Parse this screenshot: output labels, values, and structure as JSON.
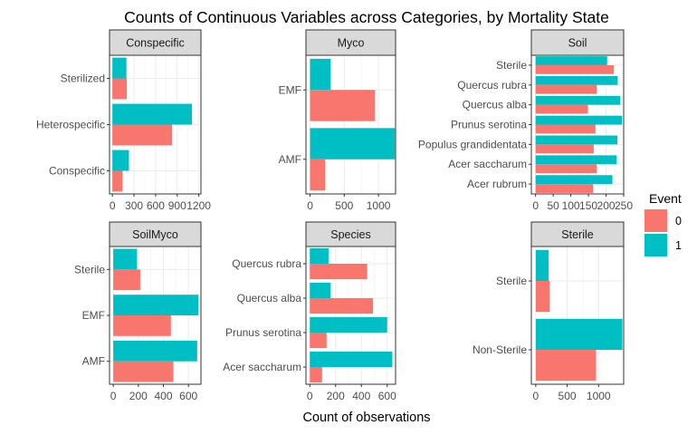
{
  "title": "Counts of Continuous Variables across Categories, by Mortality State",
  "xlabel": "Count of observations",
  "legend": {
    "title": "Event",
    "items": [
      {
        "label": "0",
        "color": "#F8766D"
      },
      {
        "label": "1",
        "color": "#00BFC4"
      }
    ]
  },
  "colors": {
    "event0": "#F8766D",
    "event1": "#00BFC4",
    "strip": "#d9d9d9",
    "grid": "#ebebeb"
  },
  "chart_data": [
    {
      "type": "bar",
      "title": "Conspecific",
      "categories": [
        "Sterilized",
        "Heterospecific",
        "Conspecific"
      ],
      "series": [
        {
          "name": "0",
          "values": [
            200,
            830,
            140
          ]
        },
        {
          "name": "1",
          "values": [
            195,
            1105,
            230
          ]
        }
      ],
      "xlim": [
        -40,
        1230
      ],
      "xticks": [
        0,
        300,
        600,
        900,
        1200
      ]
    },
    {
      "type": "bar",
      "title": "Myco",
      "categories": [
        "EMF",
        "AMF"
      ],
      "series": [
        {
          "name": "0",
          "values": [
            950,
            220
          ]
        },
        {
          "name": "1",
          "values": [
            300,
            1240
          ]
        }
      ],
      "xlim": [
        -60,
        1250
      ],
      "xticks": [
        0,
        500,
        1000
      ]
    },
    {
      "type": "bar",
      "title": "Soil",
      "categories": [
        "Sterile",
        "Quercus rubra",
        "Quercus alba",
        "Prunus serotina",
        "Populus grandidentata",
        "Acer saccharum",
        "Acer rubrum"
      ],
      "series": [
        {
          "name": "0",
          "values": [
            222,
            173,
            148,
            170,
            165,
            173,
            163
          ]
        },
        {
          "name": "1",
          "values": [
            203,
            233,
            240,
            245,
            232,
            230,
            218
          ]
        }
      ],
      "xlim": [
        -12,
        250
      ],
      "xticks": [
        0,
        50,
        100,
        150,
        200,
        250
      ],
      "xtick_labels": [
        "0",
        "50",
        "100",
        "150",
        "200",
        "250"
      ]
    },
    {
      "type": "bar",
      "title": "SoilMyco",
      "categories": [
        "Sterile",
        "EMF",
        "AMF"
      ],
      "series": [
        {
          "name": "0",
          "values": [
            215,
            460,
            480
          ]
        },
        {
          "name": "1",
          "values": [
            190,
            680,
            670
          ]
        }
      ],
      "xlim": [
        -30,
        700
      ],
      "xticks": [
        0,
        200,
        400,
        600
      ]
    },
    {
      "type": "bar",
      "title": "Species",
      "categories": [
        "Quercus rubra",
        "Quercus alba",
        "Prunus serotina",
        "Acer saccharum"
      ],
      "series": [
        {
          "name": "0",
          "values": [
            445,
            490,
            130,
            95
          ]
        },
        {
          "name": "1",
          "values": [
            145,
            160,
            600,
            640
          ]
        }
      ],
      "xlim": [
        -30,
        665
      ],
      "xticks": [
        0,
        200,
        400,
        600
      ]
    },
    {
      "type": "bar",
      "title": "Sterile",
      "categories": [
        "Sterile",
        "Non-Sterile"
      ],
      "series": [
        {
          "name": "0",
          "values": [
            220,
            960
          ]
        },
        {
          "name": "1",
          "values": [
            205,
            1380
          ]
        }
      ],
      "xlim": [
        -70,
        1400
      ],
      "xticks": [
        0,
        500,
        1000
      ]
    }
  ]
}
